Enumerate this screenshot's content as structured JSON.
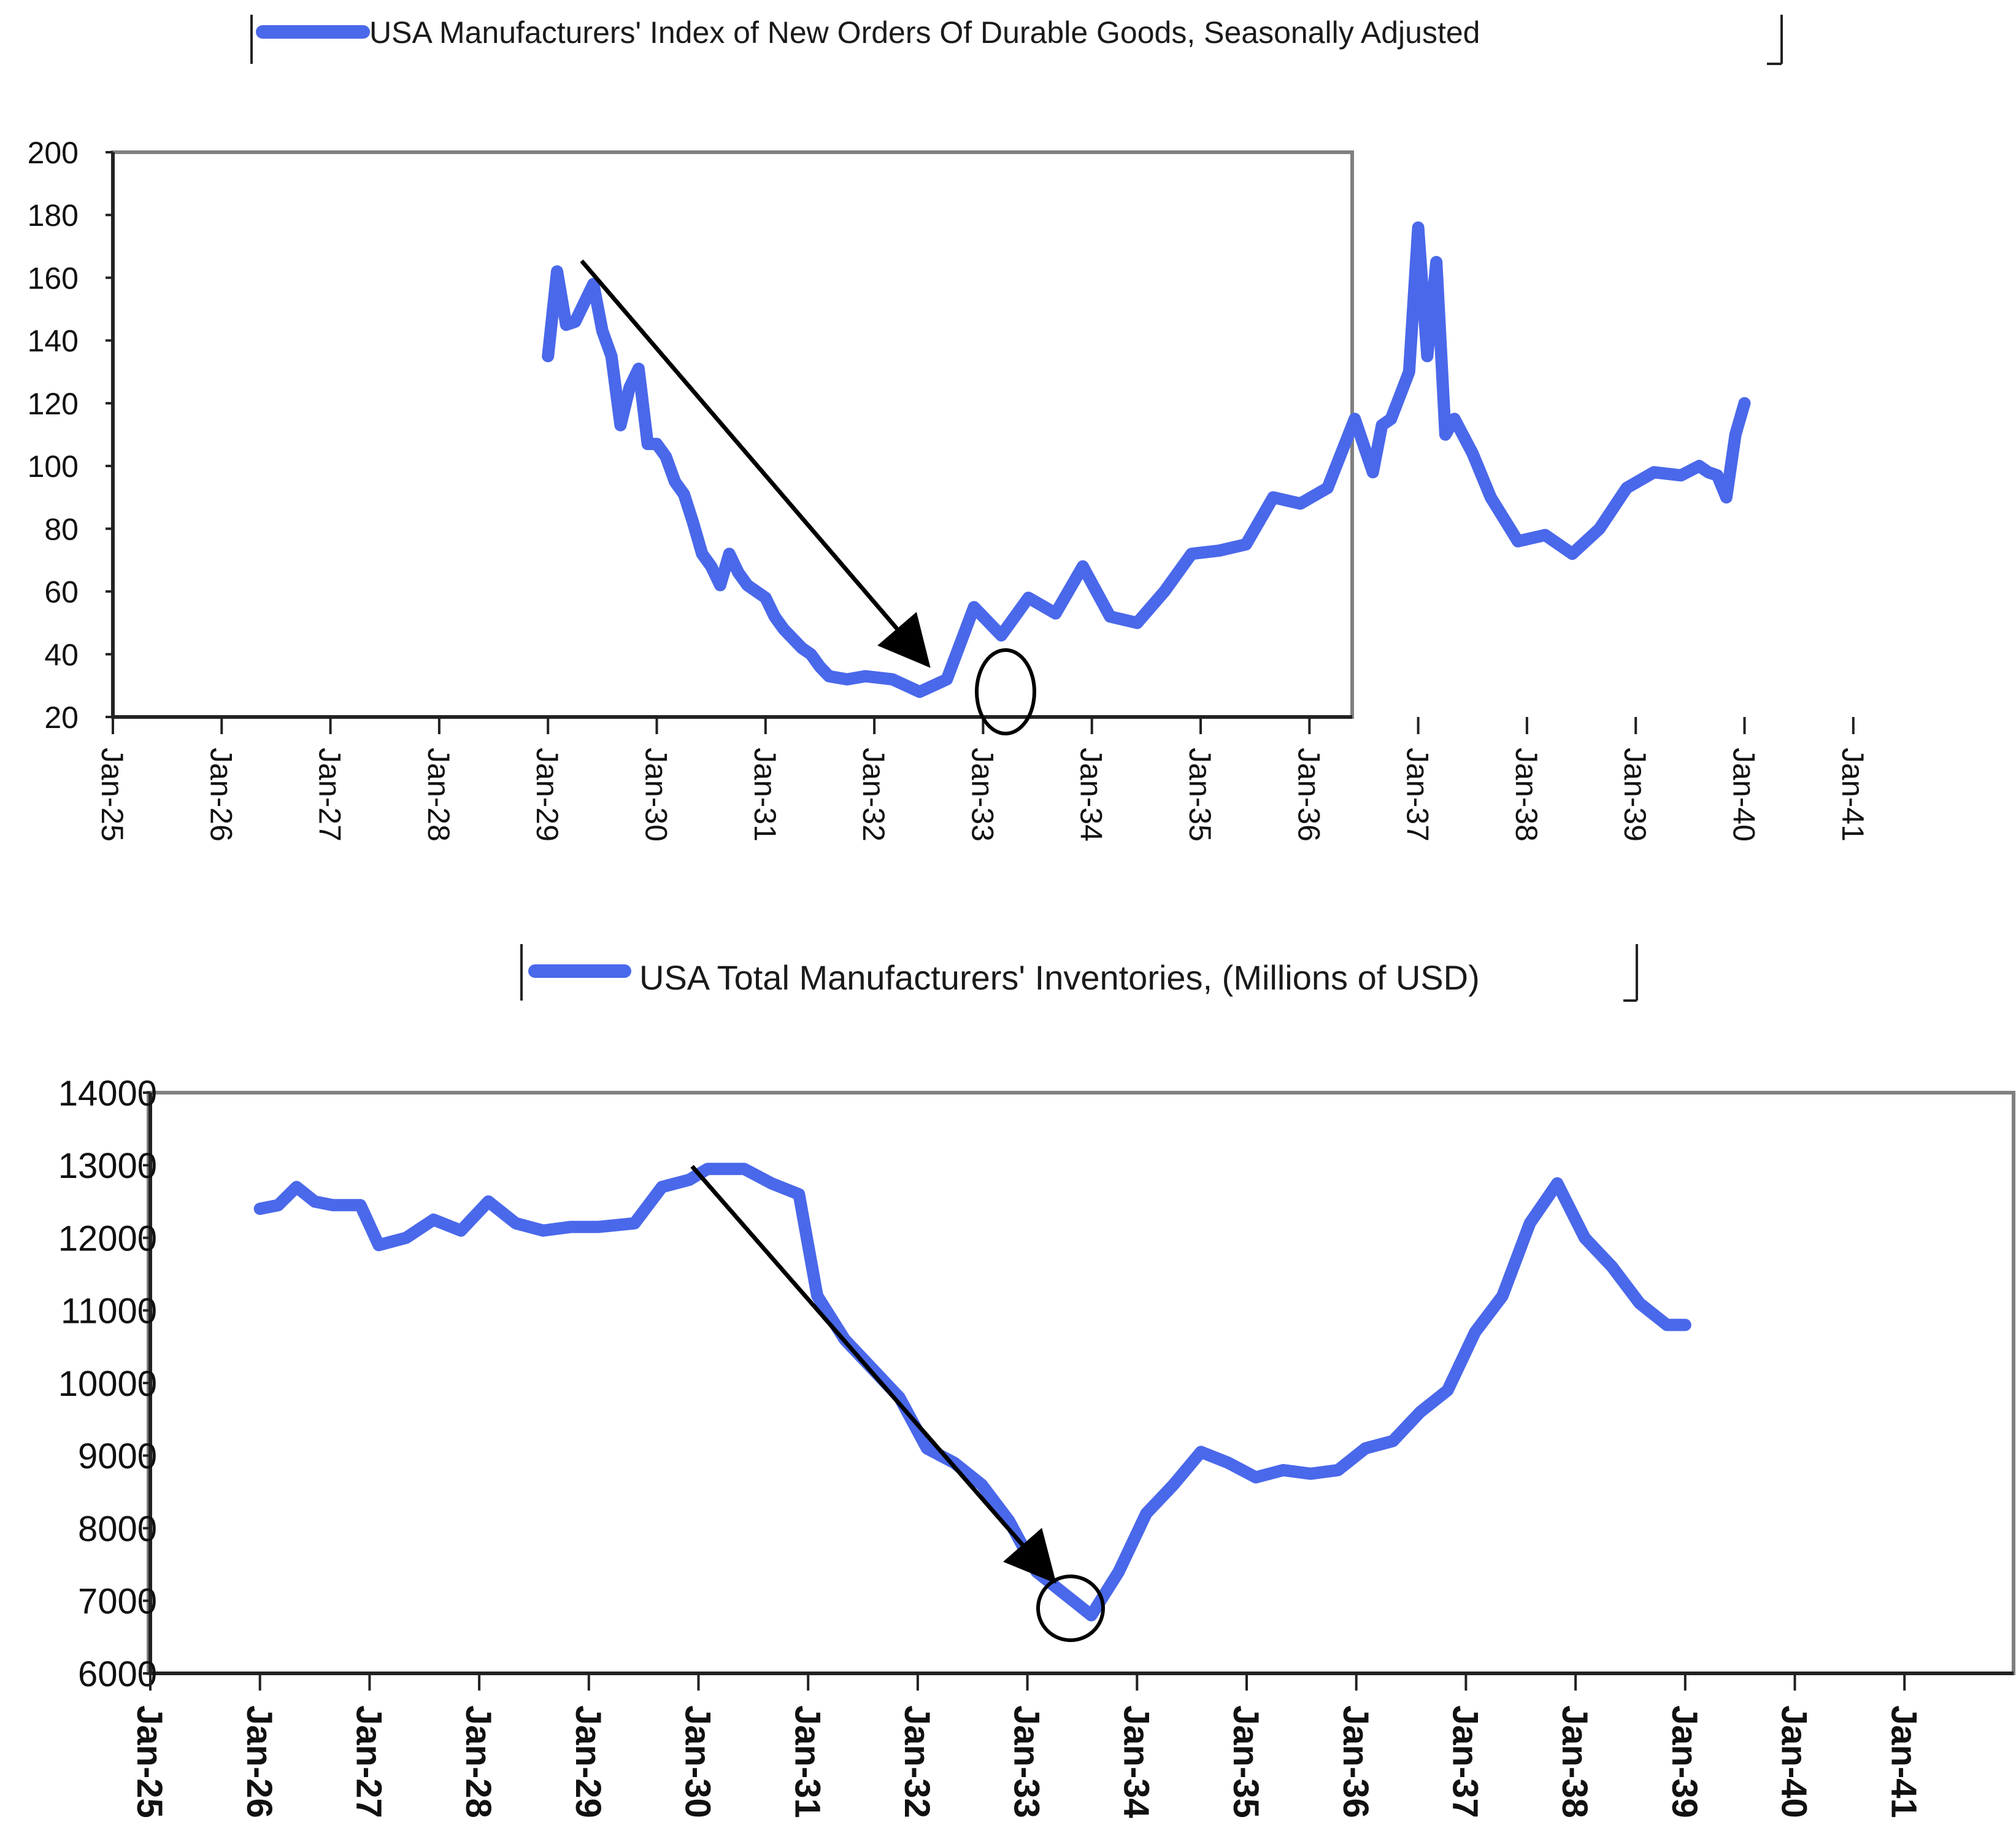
{
  "colors": {
    "series": "#4a68ea",
    "frame": "#808080",
    "axis": "#222222",
    "annotation": "#000000"
  },
  "chart_data": [
    {
      "type": "line",
      "title": "",
      "legend": "top-center",
      "xlabel": "",
      "ylabel": "",
      "grid": false,
      "ylim": [
        20,
        200
      ],
      "xlim": [
        "Jan-25",
        "Jan-41"
      ],
      "x_ticks": [
        "Jan-25",
        "Jan-26",
        "Jan-27",
        "Jan-28",
        "Jan-29",
        "Jan-30",
        "Jan-31",
        "Jan-32",
        "Jan-33",
        "Jan-34",
        "Jan-35",
        "Jan-36",
        "Jan-37",
        "Jan-38",
        "Jan-39",
        "Jan-40",
        "Jan-41"
      ],
      "y_ticks": [
        "20",
        "40",
        "60",
        "80",
        "100",
        "120",
        "140",
        "160",
        "180",
        "200"
      ],
      "series": [
        {
          "name": "USA Manufacturers' Index of New Orders Of Durable Goods, Seasonally Adjusted",
          "x": [
            "1929-01",
            "1929-02",
            "1929-03",
            "1929-04",
            "1929-06",
            "1929-07",
            "1929-08",
            "1929-09",
            "1929-10",
            "1929-11",
            "1929-12",
            "1930-01",
            "1930-02",
            "1930-03",
            "1930-04",
            "1930-05",
            "1930-06",
            "1930-07",
            "1930-08",
            "1930-09",
            "1930-10",
            "1930-11",
            "1931-01",
            "1931-02",
            "1931-03",
            "1931-04",
            "1931-05",
            "1931-06",
            "1931-07",
            "1931-08",
            "1931-10",
            "1931-12",
            "1932-03",
            "1932-06",
            "1932-09",
            "1932-12",
            "1933-03",
            "1933-06",
            "1933-09",
            "1933-12",
            "1934-03",
            "1934-06",
            "1934-09",
            "1934-12",
            "1935-03",
            "1935-06",
            "1935-09",
            "1935-12",
            "1936-03",
            "1936-06",
            "1936-08",
            "1936-09",
            "1936-10",
            "1936-12",
            "1937-01",
            "1937-02",
            "1937-03",
            "1937-04",
            "1937-05",
            "1937-07",
            "1937-09",
            "1937-12",
            "1938-03",
            "1938-06",
            "1938-09",
            "1938-12",
            "1939-03",
            "1939-06",
            "1939-08",
            "1939-09",
            "1939-10",
            "1939-11",
            "1939-12",
            "1940-01"
          ],
          "y": [
            135,
            162,
            145,
            146,
            158,
            143,
            135,
            113,
            125,
            131,
            107,
            107,
            103,
            95,
            91,
            82,
            72,
            68,
            62,
            72,
            66,
            62,
            58,
            52,
            48,
            45,
            42,
            40,
            36,
            33,
            32,
            33,
            32,
            28,
            32,
            55,
            46,
            58,
            53,
            68,
            52,
            50,
            60,
            72,
            73,
            75,
            90,
            88,
            93,
            115,
            98,
            113,
            115,
            130,
            176,
            135,
            165,
            110,
            115,
            104,
            90,
            76,
            78,
            72,
            80,
            93,
            98,
            97,
            100,
            98,
            97,
            90,
            110,
            120
          ]
        }
      ]
    },
    {
      "type": "line",
      "title": "",
      "legend": "top-center",
      "xlabel": "",
      "ylabel": "",
      "grid": false,
      "ylim": [
        6000,
        14000
      ],
      "xlim": [
        "Jan-25",
        "Jan-41"
      ],
      "x_ticks": [
        "Jan-25",
        "Jan-26",
        "Jan-27",
        "Jan-28",
        "Jan-29",
        "Jan-30",
        "Jan-31",
        "Jan-32",
        "Jan-33",
        "Jan-34",
        "Jan-35",
        "Jan-36",
        "Jan-37",
        "Jan-38",
        "Jan-39",
        "Jan-40",
        "Jan-41"
      ],
      "y_ticks": [
        "6000",
        "7000",
        "8000",
        "9000",
        "10000",
        "11000",
        "12000",
        "13000",
        "14000"
      ],
      "series": [
        {
          "name": "USA Total Manufacturers' Inventories, (Millions of USD)",
          "x": [
            "1926-01",
            "1926-03",
            "1926-05",
            "1926-07",
            "1926-09",
            "1926-12",
            "1927-02",
            "1927-05",
            "1927-08",
            "1927-11",
            "1928-02",
            "1928-05",
            "1928-08",
            "1928-11",
            "1929-02",
            "1929-06",
            "1929-09",
            "1929-12",
            "1930-02",
            "1930-06",
            "1930-09",
            "1930-12",
            "1931-02",
            "1931-05",
            "1931-08",
            "1931-11",
            "1932-02",
            "1932-05",
            "1932-08",
            "1932-11",
            "1933-02",
            "1933-05",
            "1933-08",
            "1933-11",
            "1934-02",
            "1934-05",
            "1934-08",
            "1934-11",
            "1935-02",
            "1935-05",
            "1935-08",
            "1935-11",
            "1936-02",
            "1936-05",
            "1936-08",
            "1936-11",
            "1937-02",
            "1937-05",
            "1937-08",
            "1937-11",
            "1938-02",
            "1938-05",
            "1938-08",
            "1938-11",
            "1939-01"
          ],
          "y": [
            12400,
            12450,
            12700,
            12500,
            12450,
            12450,
            11900,
            12000,
            12250,
            12100,
            12500,
            12200,
            12100,
            12150,
            12150,
            12200,
            12700,
            12800,
            12950,
            12950,
            12750,
            12600,
            11200,
            10600,
            10200,
            9800,
            9100,
            8900,
            8600,
            8100,
            7400,
            7100,
            6800,
            7400,
            8200,
            8600,
            9050,
            8900,
            8700,
            8800,
            8750,
            8800,
            9100,
            9200,
            9600,
            9900,
            10700,
            11200,
            12200,
            12750,
            12000,
            11600,
            11100,
            10800,
            10800
          ]
        }
      ]
    }
  ]
}
